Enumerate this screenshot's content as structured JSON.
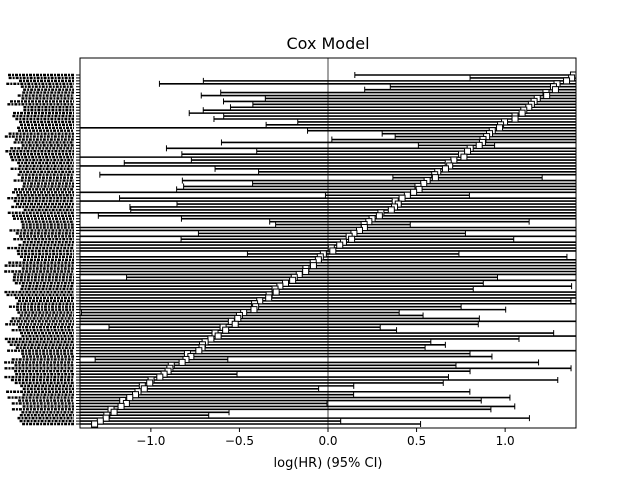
{
  "chart_data": {
    "type": "forest",
    "title": "Cox Model",
    "xlabel": "log(HR) (95% CI)",
    "xlim": [
      -1.4,
      1.4
    ],
    "x_ticks": [
      -1.0,
      -0.5,
      0.0,
      0.5,
      1.0
    ],
    "x_tick_labels": [
      "−1.0",
      "−0.5",
      "0.0",
      "0.5",
      "1.0"
    ],
    "reference_line_x": 0.0,
    "y_tick_labels_note": "covariate names are overlapping and illegible",
    "n_rows": 120,
    "point_log_hr_range": [
      -1.32,
      1.38
    ],
    "ci_half_width_range": [
      0.18,
      2.4
    ],
    "colors": {
      "ci_line": "#000000",
      "marker_fill": "#ffffff",
      "marker_edge": "#000000",
      "reference_line": "#444444",
      "background": "#ffffff"
    }
  }
}
